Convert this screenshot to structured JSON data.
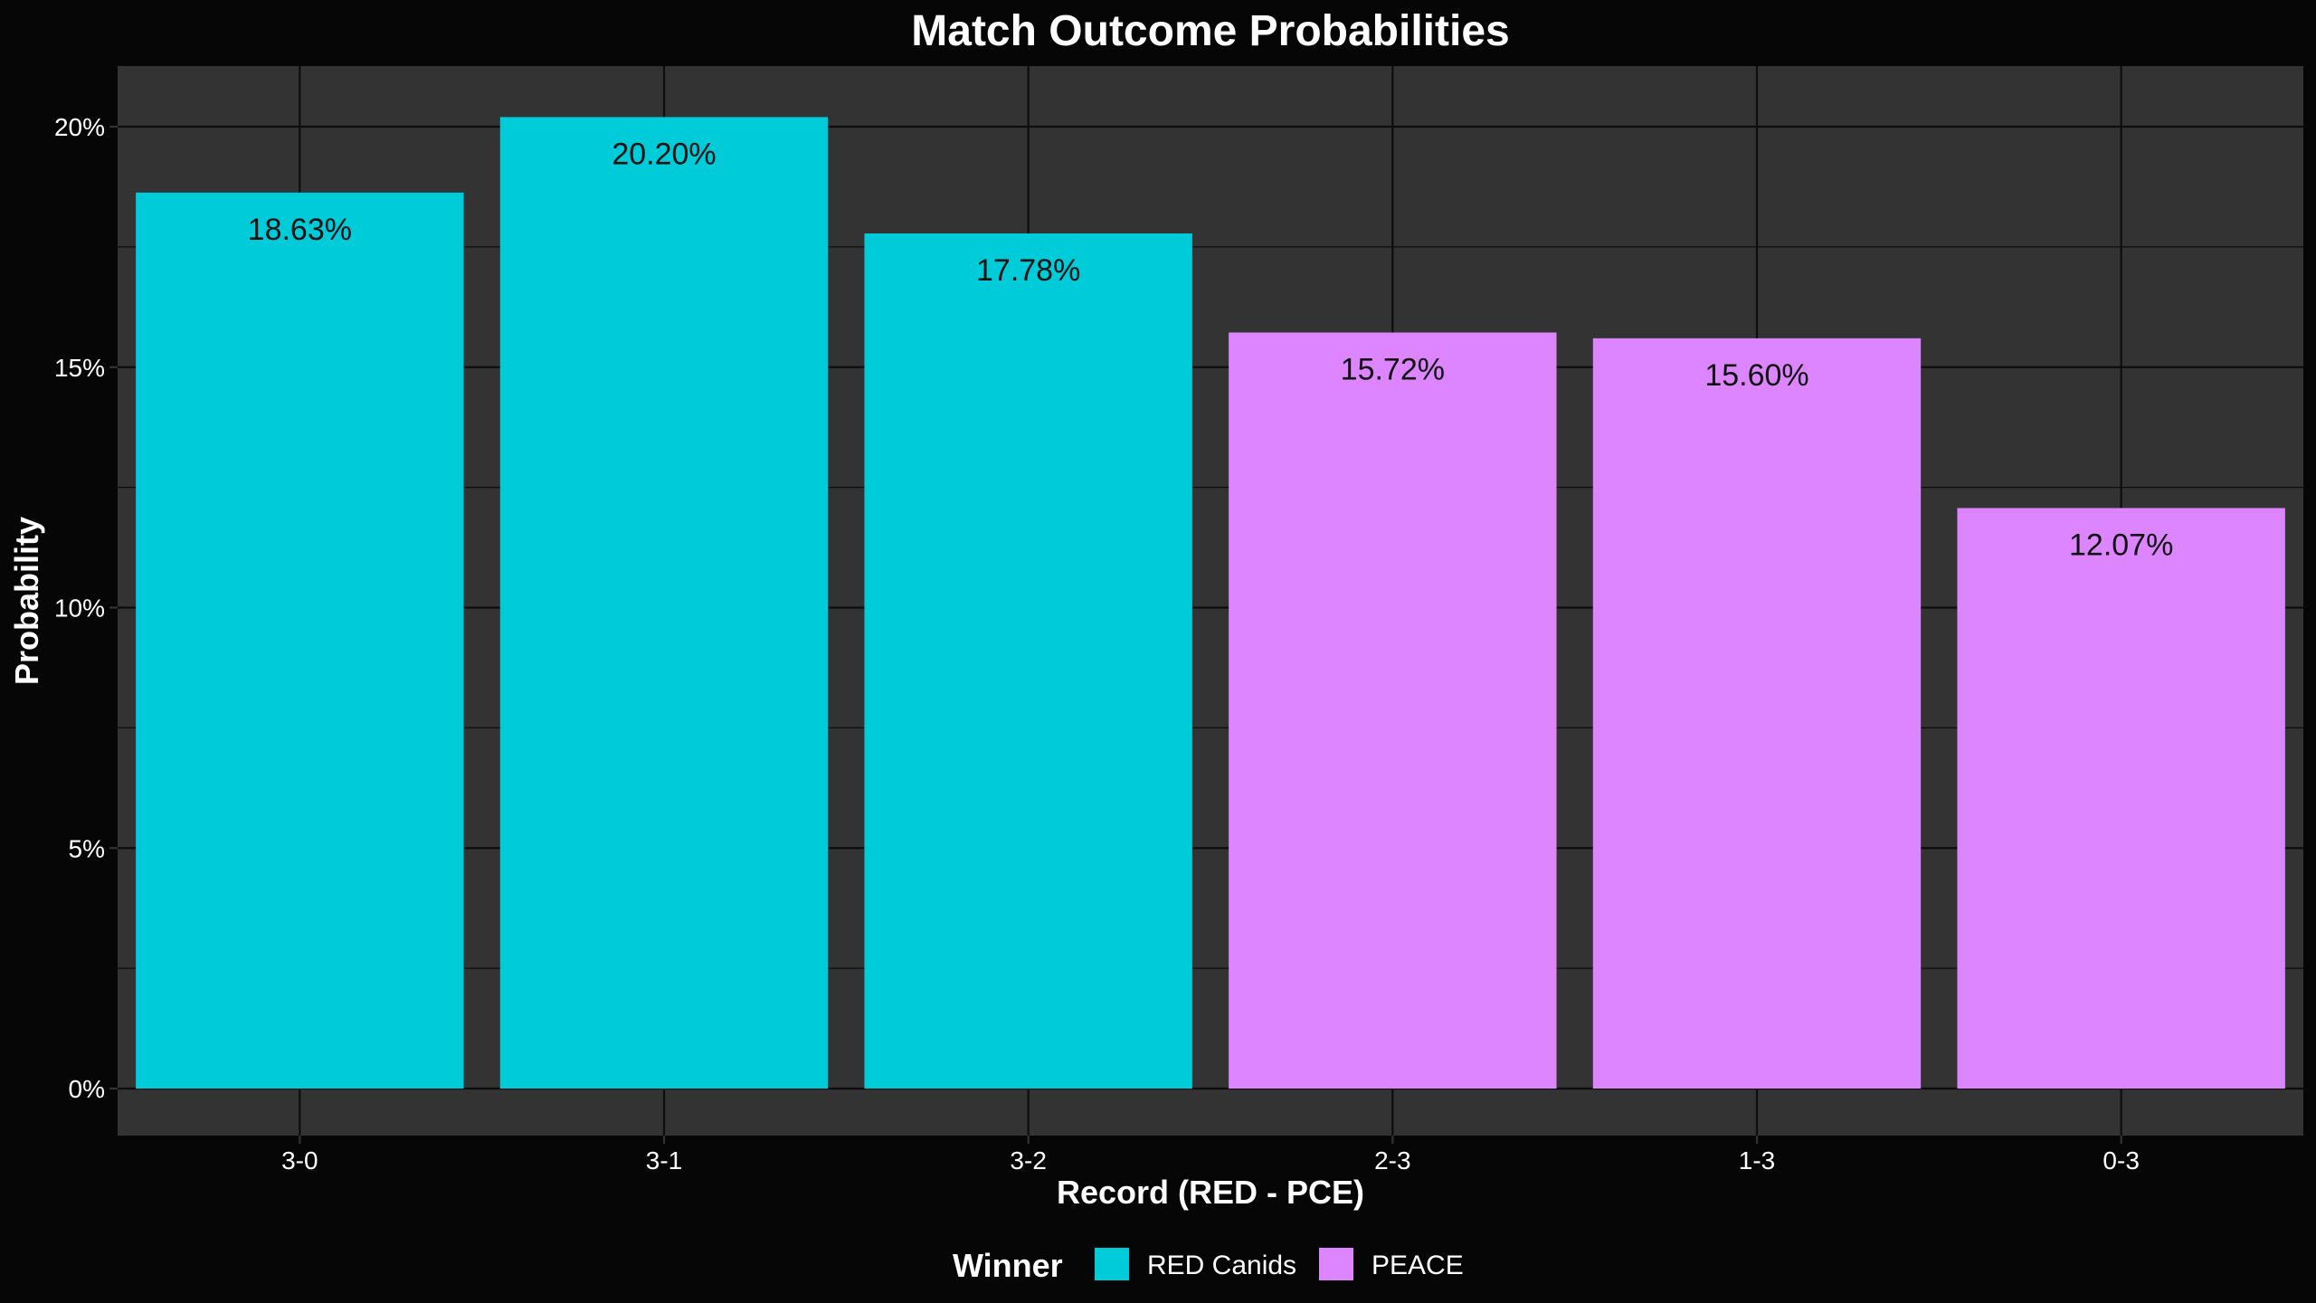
{
  "chart_data": {
    "type": "bar",
    "title": "Match Outcome Probabilities",
    "xlabel": "Record (RED - PCE)",
    "ylabel": "Probability",
    "categories": [
      "3-0",
      "3-1",
      "3-2",
      "2-3",
      "1-3",
      "0-3"
    ],
    "values": [
      18.63,
      20.2,
      17.78,
      15.72,
      15.6,
      12.07
    ],
    "data_labels": [
      "18.63%",
      "20.20%",
      "17.78%",
      "15.72%",
      "15.60%",
      "12.07%"
    ],
    "winner": [
      "RED Canids",
      "RED Canids",
      "RED Canids",
      "PEACE",
      "PEACE",
      "PEACE"
    ],
    "ylim": [
      0,
      20.2
    ],
    "y_ticks": [
      0,
      5,
      10,
      15,
      20
    ],
    "y_tick_labels": [
      "0%",
      "5%",
      "10%",
      "15%",
      "20%"
    ],
    "grid": true,
    "legend": {
      "title": "Winner",
      "placement": "bottom",
      "entries": [
        {
          "label": "RED Canids",
          "color": "#00CBD9"
        },
        {
          "label": "PEACE",
          "color": "#DD85FF"
        }
      ]
    },
    "colors": {
      "background": "#060606",
      "panel": "#333333",
      "grid": "#0d0d0d"
    }
  }
}
